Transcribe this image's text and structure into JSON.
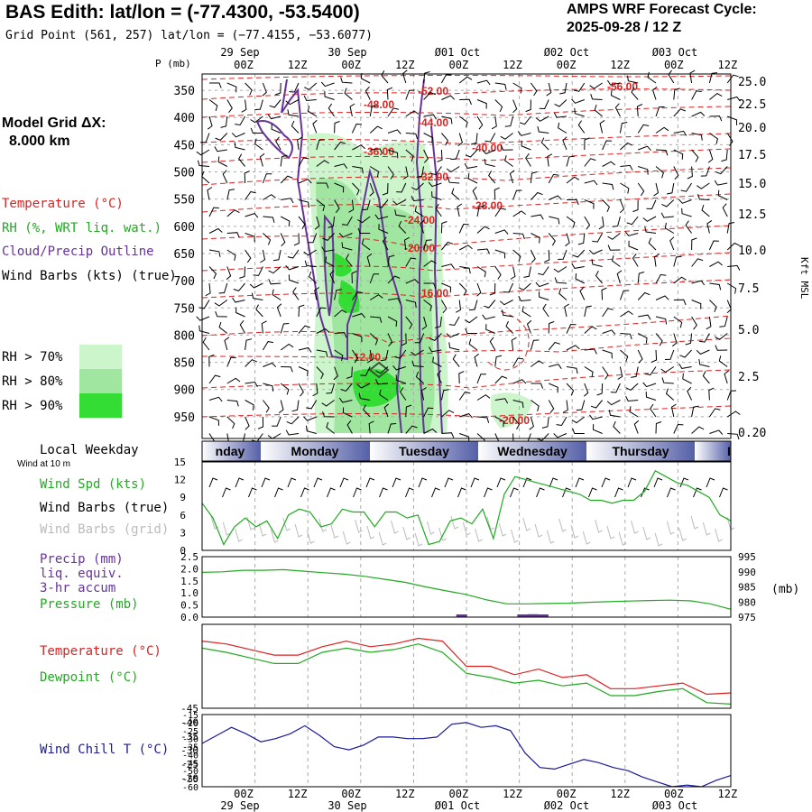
{
  "header": {
    "title": "BAS Edith:  lat/lon = (-77.4300, -53.5400)",
    "grid_point": "Grid Point (561, 257) lat/lon = (−77.4155, −53.6077)",
    "cycle_label": "AMPS WRF Forecast Cycle:",
    "cycle_value": "2025-09-28 / 12  Z",
    "model_grid_label": "Model Grid ΔX:",
    "model_grid_value": "8.000 km"
  },
  "legend": {
    "temperature": "Temperature (°C)",
    "rh": "RH (%, WRT liq. wat.)",
    "cloud": "Cloud/Precip Outline",
    "wind": "Wind Barbs (kts) (true)",
    "rh70": "RH > 70%",
    "rh80": "RH > 80%",
    "rh90": "RH > 90%",
    "colors": {
      "temperature": "#dd2222",
      "rh": "#22aa22",
      "cloud": "#663399",
      "rh70": "#ccf5cc",
      "rh80": "#a0e6a0",
      "rh90": "#33dd33"
    }
  },
  "time_axis": {
    "top_dates": [
      "29 Sep",
      "30 Sep",
      "Ø01 Oct",
      "Ø02 Oct",
      "Ø03 Oct"
    ],
    "hours": [
      "00Z",
      "12Z",
      "00Z",
      "12Z",
      "00Z",
      "12Z",
      "00Z",
      "12Z",
      "00Z",
      "12Z"
    ],
    "weekday_label": "Local Weekday",
    "weekdays": [
      "nday",
      "Monday",
      "Tuesday",
      "Wednesday",
      "Thursday",
      "I"
    ]
  },
  "chart_data": [
    {
      "type": "heatmap",
      "panel": "vertical_profile",
      "ylabel": "P (mb)",
      "y_ticks": [
        350,
        400,
        450,
        500,
        550,
        600,
        650,
        700,
        750,
        800,
        850,
        900,
        950
      ],
      "right_ticks": [
        "25.0",
        "22.5",
        "20.0",
        "17.5",
        "15.0",
        "12.5",
        "10.0",
        "7.5",
        "5.0",
        "2.5",
        "0.20"
      ],
      "right_label": "Kft MSL",
      "contour_labels": [
        "-52.00",
        "-56.00",
        "-48.00",
        "-44.00",
        "-40.00",
        "-36.00",
        "-32.00",
        "-28.00",
        "-24.00",
        "-20.00",
        "-16.00",
        "-12.00",
        "-20.00"
      ]
    },
    {
      "type": "line",
      "panel": "wind",
      "label": "Wind at 10 m",
      "series_names": [
        "Wind Spd (kts)",
        "Wind Barbs (true)",
        "Wind Barbs (grid)"
      ],
      "y_ticks": [
        "0",
        "3",
        "6",
        "9",
        "12",
        "15"
      ],
      "ylim": [
        0,
        15
      ],
      "values": [
        8,
        5.5,
        1,
        4,
        5.5,
        4,
        5,
        2,
        6,
        7,
        6.5,
        4,
        4.5,
        7,
        6.5,
        6.5,
        4,
        6.5,
        6.5,
        5.5,
        6,
        1,
        1.5,
        5,
        5.5,
        4.5,
        7,
        2,
        9.5,
        12.5,
        12,
        11.5,
        11,
        10.5,
        10,
        9.5,
        8.5,
        8.5,
        8,
        8.5,
        8.5,
        10,
        13.5,
        12.5,
        11.5,
        11,
        10,
        9,
        6,
        5
      ]
    },
    {
      "type": "line",
      "panel": "precip_pressure",
      "series_names": [
        "Precip (mm)",
        "liq. equiv.",
        "3-hr accum",
        "Pressure (mb)"
      ],
      "y_ticks": [
        "0.0",
        "0.5",
        "1.0",
        "1.5",
        "2.0",
        "2.5"
      ],
      "right_ticks": [
        "975",
        "980",
        "985",
        "990",
        "995"
      ],
      "right_label": "(mb)",
      "ylim": [
        975,
        995
      ],
      "pressure": [
        989.8,
        990,
        990.5,
        990.5,
        990.7,
        990.2,
        989.7,
        989.2,
        988.5,
        987.5,
        986.5,
        985,
        983.7,
        982.5,
        980.7,
        979.4,
        979.4,
        979.5,
        979.6,
        979.9,
        980.1,
        980.3,
        980.5,
        980.6,
        980.4,
        979.4,
        977.6
      ],
      "precip_bars": [
        {
          "x": 12.5,
          "v": 0.08
        },
        {
          "x": 15.5,
          "v": 0.06
        },
        {
          "x": 16,
          "v": 0.12
        },
        {
          "x": 16.5,
          "v": 0.05
        }
      ]
    },
    {
      "type": "line",
      "panel": "temperature",
      "series_names": [
        "Temperature (°C)",
        "Dewpoint (°C)"
      ],
      "y_ticks": [
        "-20",
        "-25",
        "-30",
        "-35",
        "-40",
        "-45"
      ],
      "ylim": [
        -45,
        -15
      ],
      "temperature": [
        -21,
        -22,
        -24,
        -26,
        -26,
        -23,
        -21,
        -23,
        -22,
        -20,
        -21,
        -30,
        -30,
        -33,
        -31,
        -34,
        -33,
        -38,
        -38,
        -37,
        -36,
        -40,
        -39.5
      ],
      "dewpoint": [
        -23.5,
        -25,
        -27,
        -29,
        -29,
        -25,
        -23.5,
        -25,
        -24,
        -22,
        -25,
        -32.5,
        -34,
        -36,
        -35,
        -37,
        -36,
        -40.5,
        -40.5,
        -39,
        -38,
        -43,
        -43.5
      ]
    },
    {
      "type": "line",
      "panel": "wind_chill",
      "series_names": [
        "Wind Chill T (°C)"
      ],
      "y_ticks": [
        "-15",
        "-20",
        "-25",
        "-30",
        "-35",
        "-40",
        "-45",
        "-50",
        "-55",
        "-60"
      ],
      "ylim": [
        -60,
        -15
      ],
      "values": [
        -33,
        -28,
        -23,
        -27,
        -32,
        -30,
        -27,
        -22,
        -28,
        -35,
        -37,
        -34,
        -29,
        -29,
        -30,
        -30,
        -29,
        -21,
        -20,
        -23,
        -22,
        -25,
        -39,
        -48,
        -49,
        -46,
        -43,
        -45,
        -48,
        -50,
        -54,
        -57,
        -60,
        -59,
        -60,
        -56,
        -53
      ]
    }
  ]
}
